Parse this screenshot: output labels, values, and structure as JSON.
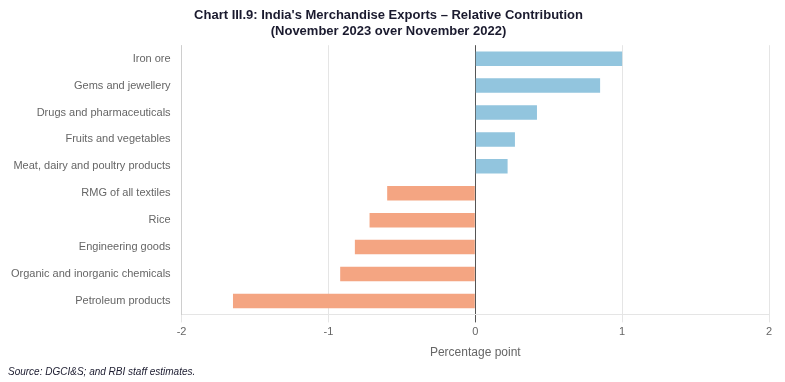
{
  "chart_data": {
    "type": "bar",
    "orientation": "horizontal",
    "title": "Chart III.9: India's Merchandise Exports – Relative Contribution",
    "subtitle": "(November 2023 over November 2022)",
    "annotations": [
      "Source: DGCI&S; and RBI staff estimates."
    ],
    "x_label": "Percentage point",
    "categories": [
      "Petroleum products",
      "Organic and inorganic chemicals",
      "Engineering goods",
      "Rice",
      "RMG of all textiles",
      "Meat, dairy and poultry products",
      "Fruits and vegetables",
      "Drugs and pharmaceuticals",
      "Gems and jewellery",
      "Iron ore"
    ],
    "values": [
      -1.65,
      -0.92,
      -0.82,
      -0.72,
      -0.6,
      0.22,
      0.27,
      0.42,
      0.85,
      1.0
    ],
    "colors": [
      "#f4a582",
      "#f4a582",
      "#f4a582",
      "#f4a582",
      "#f4a582",
      "#92c5de",
      "#92c5de",
      "#92c5de",
      "#92c5de",
      "#92c5de"
    ],
    "xlim": [
      -2,
      2
    ],
    "xticks": [
      -2,
      -1,
      0,
      1,
      2
    ],
    "grid": true
  }
}
